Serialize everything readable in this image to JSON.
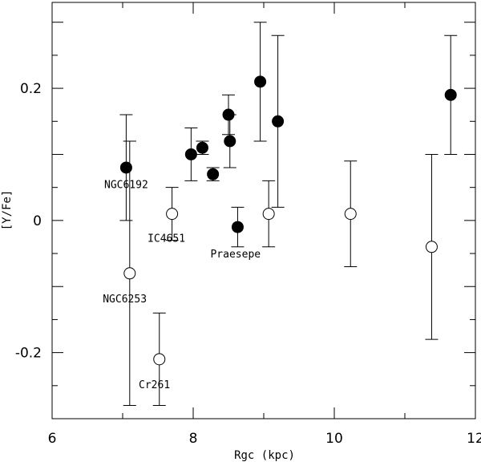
{
  "chart_data": {
    "type": "scatter",
    "title": "",
    "xlabel": "Rgc (kpc)",
    "ylabel": "[Y/Fe]",
    "xlim": [
      6,
      12
    ],
    "ylim": [
      -0.3,
      0.33
    ],
    "x_ticks": [
      6,
      8,
      10,
      12
    ],
    "x_tick_labels": [
      "6",
      "8",
      "10",
      "12"
    ],
    "y_ticks": [
      -0.2,
      0,
      0.2
    ],
    "y_tick_labels": [
      "-0.2",
      "0",
      "0.2"
    ],
    "grid": false,
    "series": [
      {
        "marker": "filled-circle",
        "points": [
          {
            "x": 7.05,
            "y": 0.08,
            "err_low": 0.0,
            "err_high": 0.16
          },
          {
            "x": 7.97,
            "y": 0.1,
            "err_low": 0.06,
            "err_high": 0.14
          },
          {
            "x": 8.13,
            "y": 0.11,
            "err_low": 0.1,
            "err_high": 0.12
          },
          {
            "x": 8.28,
            "y": 0.07,
            "err_low": 0.06,
            "err_high": 0.08
          },
          {
            "x": 8.5,
            "y": 0.16,
            "err_low": 0.13,
            "err_high": 0.19
          },
          {
            "x": 8.52,
            "y": 0.12,
            "err_low": 0.08,
            "err_high": 0.16
          },
          {
            "x": 8.63,
            "y": -0.01,
            "err_low": -0.04,
            "err_high": 0.02
          },
          {
            "x": 8.95,
            "y": 0.21,
            "err_low": 0.12,
            "err_high": 0.3
          },
          {
            "x": 9.2,
            "y": 0.15,
            "err_low": 0.02,
            "err_high": 0.28
          },
          {
            "x": 11.65,
            "y": 0.19,
            "err_low": 0.1,
            "err_high": 0.28
          }
        ]
      },
      {
        "marker": "open-circle",
        "points": [
          {
            "x": 7.1,
            "y": 0.12,
            "err_low": 0.12,
            "err_high": 0.12,
            "marker": "none"
          },
          {
            "x": 7.1,
            "y": -0.08,
            "err_low": -0.28,
            "err_high": 0.12
          },
          {
            "x": 7.52,
            "y": -0.21,
            "err_low": -0.28,
            "err_high": -0.14
          },
          {
            "x": 7.7,
            "y": 0.01,
            "err_low": -0.03,
            "err_high": 0.05
          },
          {
            "x": 9.07,
            "y": 0.01,
            "err_low": -0.04,
            "err_high": 0.06
          },
          {
            "x": 10.23,
            "y": 0.01,
            "err_low": -0.07,
            "err_high": 0.09
          },
          {
            "x": 11.38,
            "y": -0.04,
            "err_low": -0.18,
            "err_high": 0.1
          }
        ]
      }
    ],
    "annotations": [
      {
        "text": "NGC6192",
        "x": 7.05,
        "y": 0.055
      },
      {
        "text": "IC4651",
        "x": 7.62,
        "y": -0.026
      },
      {
        "text": "Praesepe",
        "x": 8.6,
        "y": -0.05
      },
      {
        "text": "NGC6253",
        "x": 7.03,
        "y": -0.118
      },
      {
        "text": "Cr261",
        "x": 7.45,
        "y": -0.248
      }
    ]
  }
}
